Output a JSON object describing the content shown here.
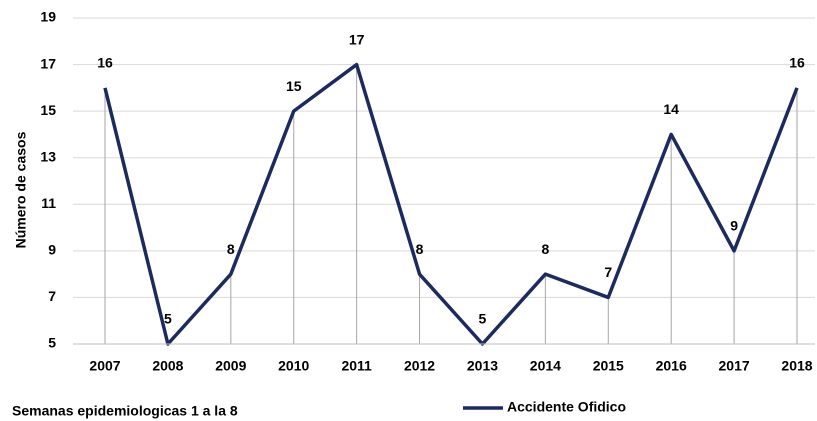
{
  "chart_data": {
    "type": "line",
    "y_label": "Número de casos",
    "caption": "Semanas epidemiologicas 1 a la 8",
    "categories": [
      "2007",
      "2008",
      "2009",
      "2010",
      "2011",
      "2012",
      "2013",
      "2014",
      "2015",
      "2016",
      "2017",
      "2018"
    ],
    "series": [
      {
        "name": "Accidente Ofidico",
        "color": "#1c2a5e",
        "values": [
          16,
          5,
          8,
          15,
          17,
          8,
          5,
          8,
          7,
          14,
          9,
          16
        ]
      }
    ],
    "ylim": [
      5,
      19
    ],
    "yticks": [
      5,
      7,
      9,
      11,
      13,
      15,
      17,
      19
    ],
    "grid": true,
    "data_labels": true,
    "legend": "bottom"
  }
}
